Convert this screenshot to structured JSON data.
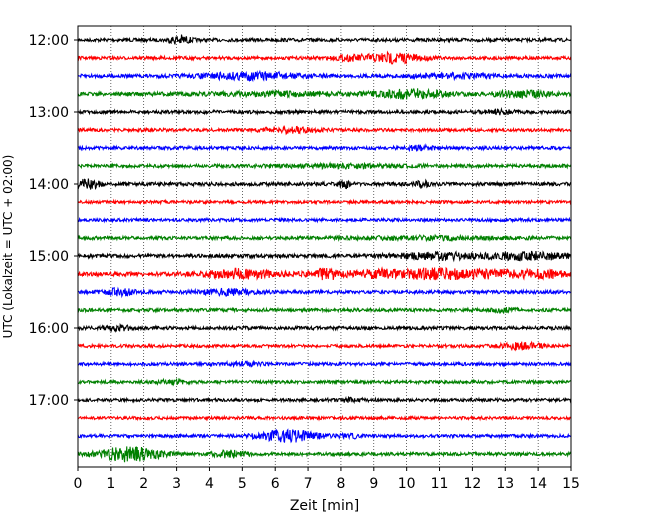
{
  "chart_data": {
    "type": "line",
    "xlabel": "Zeit  [min]",
    "ylabel": "UTC (Lokalzeit = UTC + 02:00)",
    "xlim": [
      0,
      15
    ],
    "x_ticks": [
      0,
      1,
      2,
      3,
      4,
      5,
      6,
      7,
      8,
      9,
      10,
      11,
      12,
      13,
      14,
      15
    ],
    "x_tick_labels": [
      "0",
      "1",
      "2",
      "3",
      "4",
      "5",
      "6",
      "7",
      "8",
      "9",
      "10",
      "11",
      "12",
      "13",
      "14",
      "15"
    ],
    "y_tick_labels": [
      "12:00",
      "13:00",
      "14:00",
      "15:00",
      "16:00",
      "17:00"
    ],
    "y_tick_rows": [
      0,
      4,
      8,
      12,
      16,
      20
    ],
    "grid": "vertical-dotted",
    "trace_colors": [
      "#000000",
      "#ff0000",
      "#0000ff",
      "#008000"
    ],
    "series": [
      {
        "start": "12:00",
        "base": 0.15,
        "bursts": [
          [
            3.1,
            0.3,
            1.3
          ]
        ]
      },
      {
        "start": "12:15",
        "base": 0.12,
        "bursts": [
          [
            9.6,
            0.8,
            1.5
          ],
          [
            8.3,
            0.6,
            0.6
          ]
        ]
      },
      {
        "start": "12:30",
        "base": 0.18,
        "bursts": [
          [
            5.3,
            1.5,
            1.0
          ],
          [
            11.5,
            1.2,
            0.6
          ]
        ]
      },
      {
        "start": "12:45",
        "base": 0.22,
        "bursts": [
          [
            10.2,
            1.0,
            1.2
          ],
          [
            13.5,
            0.8,
            0.9
          ],
          [
            6.0,
            2.0,
            0.5
          ]
        ]
      },
      {
        "start": "13:00",
        "base": 0.15,
        "bursts": [
          [
            12.8,
            0.5,
            0.6
          ]
        ]
      },
      {
        "start": "13:15",
        "base": 0.12,
        "bursts": [
          [
            6.4,
            0.8,
            0.8
          ]
        ]
      },
      {
        "start": "13:30",
        "base": 0.14,
        "bursts": [
          [
            10.4,
            0.5,
            0.5
          ]
        ]
      },
      {
        "start": "13:45",
        "base": 0.15,
        "bursts": [
          [
            8.0,
            2.0,
            0.4
          ]
        ]
      },
      {
        "start": "14:00",
        "base": 0.18,
        "bursts": [
          [
            0.3,
            0.4,
            1.3
          ],
          [
            8.1,
            0.2,
            1.0
          ],
          [
            10.5,
            0.2,
            1.0
          ]
        ]
      },
      {
        "start": "14:15",
        "base": 0.08,
        "bursts": []
      },
      {
        "start": "14:30",
        "base": 0.1,
        "bursts": []
      },
      {
        "start": "14:45",
        "base": 0.14,
        "bursts": [
          [
            10.5,
            2.5,
            0.4
          ]
        ]
      },
      {
        "start": "15:00",
        "base": 0.2,
        "bursts": [
          [
            11.0,
            1.5,
            0.8
          ],
          [
            13.8,
            1.2,
            1.0
          ]
        ]
      },
      {
        "start": "15:15",
        "base": 0.25,
        "bursts": [
          [
            5.0,
            1.2,
            1.2
          ],
          [
            7.6,
            0.5,
            1.5
          ],
          [
            9.2,
            0.8,
            1.2
          ],
          [
            10.8,
            0.8,
            1.4
          ],
          [
            12.5,
            1.2,
            1.2
          ],
          [
            14.2,
            0.6,
            1.0
          ]
        ]
      },
      {
        "start": "15:30",
        "base": 0.14,
        "bursts": [
          [
            1.3,
            0.5,
            1.0
          ],
          [
            4.5,
            0.8,
            0.8
          ]
        ]
      },
      {
        "start": "15:45",
        "base": 0.13,
        "bursts": [
          [
            13.0,
            0.4,
            0.6
          ]
        ]
      },
      {
        "start": "16:00",
        "base": 0.15,
        "bursts": [
          [
            1.2,
            0.4,
            0.7
          ]
        ]
      },
      {
        "start": "16:15",
        "base": 0.1,
        "bursts": [
          [
            13.5,
            0.6,
            1.0
          ]
        ]
      },
      {
        "start": "16:30",
        "base": 0.12,
        "bursts": [
          [
            5.0,
            0.6,
            0.4
          ]
        ]
      },
      {
        "start": "16:45",
        "base": 0.1,
        "bursts": [
          [
            2.8,
            0.5,
            0.6
          ]
        ]
      },
      {
        "start": "17:00",
        "base": 0.11,
        "bursts": [
          [
            8.2,
            0.5,
            0.4
          ]
        ]
      },
      {
        "start": "17:15",
        "base": 0.09,
        "bursts": []
      },
      {
        "start": "17:30",
        "base": 0.12,
        "bursts": [
          [
            6.4,
            0.9,
            1.7
          ],
          [
            8.3,
            0.3,
            0.5
          ]
        ]
      },
      {
        "start": "17:45",
        "base": 0.14,
        "bursts": [
          [
            1.6,
            0.9,
            2.2
          ],
          [
            4.6,
            0.5,
            1.0
          ]
        ]
      }
    ]
  }
}
